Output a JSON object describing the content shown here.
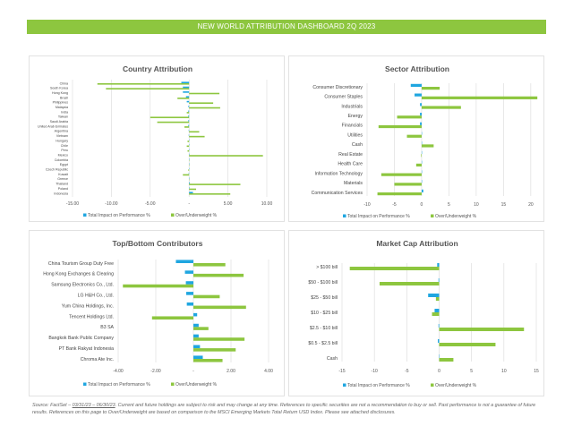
{
  "header": {
    "title": "NEW WORLD ATTRIBUTION DASHBOARD 2Q 2023"
  },
  "colors": {
    "impact": "#1fa6e0",
    "weight": "#8dc63f",
    "banner": "#8dc63f"
  },
  "legend": {
    "impact": "Total Impact on Performance %",
    "weight": "Over/Underweight %"
  },
  "chart_data": [
    {
      "type": "bar",
      "orientation": "horizontal",
      "title": "Country Attribution",
      "categories": [
        "China",
        "South Korea",
        "Hong Kong",
        "Brazil",
        "Philippines",
        "Malaysia",
        "India",
        "Taiwan",
        "Saudi Arabia",
        "United Arab Emirates",
        "Argentina",
        "Vietnam",
        "Hungary",
        "Chile",
        "Peru",
        "Mexico",
        "Colombia",
        "Egypt",
        "Czech Republic",
        "Kuwait",
        "Greece",
        "Thailand",
        "Poland",
        "Indonesia"
      ],
      "xticks": [
        "-15.00",
        "-10.00",
        "-5.00",
        "-",
        "5.00",
        "10.00"
      ],
      "xtick_values": [
        -15,
        -10,
        -5,
        0,
        5,
        10
      ],
      "xlim": [
        -15,
        10
      ],
      "grid": true,
      "legend": "bottom",
      "series": [
        {
          "name": "Total Impact on Performance %",
          "values": [
            -1.0,
            -0.8,
            -0.8,
            -0.4,
            -0.3,
            -0.1,
            -0.1,
            -0.1,
            -0.1,
            -0.1,
            -0.05,
            -0.05,
            -0.02,
            -0.02,
            -0.02,
            0.05,
            0,
            0,
            -0.02,
            -0.05,
            0,
            0.1,
            0.05,
            0.5
          ]
        },
        {
          "name": "Over/Underweight %",
          "values": [
            -11.8,
            -10.7,
            3.9,
            -1.5,
            3.1,
            4.0,
            -0.3,
            -5.0,
            -4.1,
            -0.6,
            1.3,
            2.0,
            -0.2,
            -0.3,
            -0.2,
            9.5,
            0,
            0,
            -0.1,
            -0.8,
            0,
            6.6,
            0.9,
            5.3
          ]
        }
      ]
    },
    {
      "type": "bar",
      "orientation": "horizontal",
      "title": "Sector Attribution",
      "categories": [
        "Consumer Discretionary",
        "Consumer Staples",
        "Industrials",
        "Energy",
        "Financials",
        "Utilities",
        "Cash",
        "Real Estate",
        "Health Care",
        "Information Technology",
        "Materials",
        "Communication Services"
      ],
      "xticks": [
        "-10",
        "-5",
        "0",
        "5",
        "10",
        "15",
        "20"
      ],
      "xtick_values": [
        -10,
        -5,
        0,
        5,
        10,
        15,
        20
      ],
      "xlim": [
        -10,
        21.5
      ],
      "grid": true,
      "legend": "bottom",
      "series": [
        {
          "name": "Total Impact on Performance %",
          "values": [
            -2.0,
            -1.3,
            -0.3,
            -0.3,
            -0.3,
            0,
            0,
            0,
            0.05,
            0.05,
            0.05,
            0.3
          ]
        },
        {
          "name": "Over/Underweight %",
          "values": [
            3.3,
            21.2,
            7.2,
            -4.5,
            -7.9,
            -2.7,
            2.2,
            -0.1,
            -1.0,
            -7.4,
            -5.0,
            -8.1
          ]
        }
      ]
    },
    {
      "type": "bar",
      "orientation": "horizontal",
      "title": "Top/Bottom Contributors",
      "categories": [
        "China Tourism Group Duty Free",
        "Hong Kong Exchanges & Clearing",
        "Samsung Electronics Co., Ltd.",
        "LG H&H Co., Ltd.",
        "Yum China Holdings, Inc.",
        "Tencent Holdings Ltd.",
        "B3 SA",
        "Bangkok Bank Public Company",
        "PT Bank Rakyat Indonesia",
        "Chroma Ate Inc."
      ],
      "xticks": [
        "-4.00",
        "-2.00",
        "-",
        "2.00",
        "4.00"
      ],
      "xtick_values": [
        -4,
        -2,
        0,
        2,
        4
      ],
      "xlim": [
        -4,
        4
      ],
      "grid": true,
      "legend": "bottom",
      "series": [
        {
          "name": "Total Impact on Performance %",
          "values": [
            -0.93,
            -0.45,
            -0.4,
            -0.38,
            -0.35,
            0.2,
            0.28,
            0.28,
            0.35,
            0.5
          ]
        },
        {
          "name": "Over/Underweight %",
          "values": [
            1.7,
            2.67,
            -3.75,
            1.4,
            2.8,
            -2.2,
            0.8,
            2.72,
            2.25,
            1.55
          ]
        }
      ]
    },
    {
      "type": "bar",
      "orientation": "horizontal",
      "title": "Market Cap Attribution",
      "categories": [
        "> $100 bill",
        "$50 - $100 bill",
        "$25 - $50 bill",
        "$10 - $25 bill",
        "$2.5 - $10 bill",
        "$0.5 - $2.5 bill",
        "Cash"
      ],
      "xticks": [
        "-15",
        "-10",
        "-5",
        "0",
        "5",
        "10",
        "15"
      ],
      "xtick_values": [
        -15,
        -10,
        -5,
        0,
        5,
        10,
        15
      ],
      "xlim": [
        -15,
        15
      ],
      "grid": true,
      "legend": "bottom",
      "series": [
        {
          "name": "Total Impact on Performance %",
          "values": [
            -0.3,
            -0.1,
            -1.7,
            -0.7,
            -0.1,
            -0.2,
            0
          ]
        },
        {
          "name": "Over/Underweight %",
          "values": [
            -13.8,
            -9.2,
            -0.5,
            -1.1,
            13.1,
            8.7,
            2.2
          ]
        }
      ]
    }
  ],
  "footer": {
    "source_prefix": "Source: FactSet – ",
    "date_range": "03/31/23 – 06/30/23",
    "text": ". Current and future holdings are subject to risk and may change at any time. References to specific securities are not a recommendation to buy or sell. Past performance is not a guarantee of future results. References on this page to Over/Underweight are based on comparison to the MSCI Emerging Markets Total Return USD Index. Please see attached disclosures."
  }
}
